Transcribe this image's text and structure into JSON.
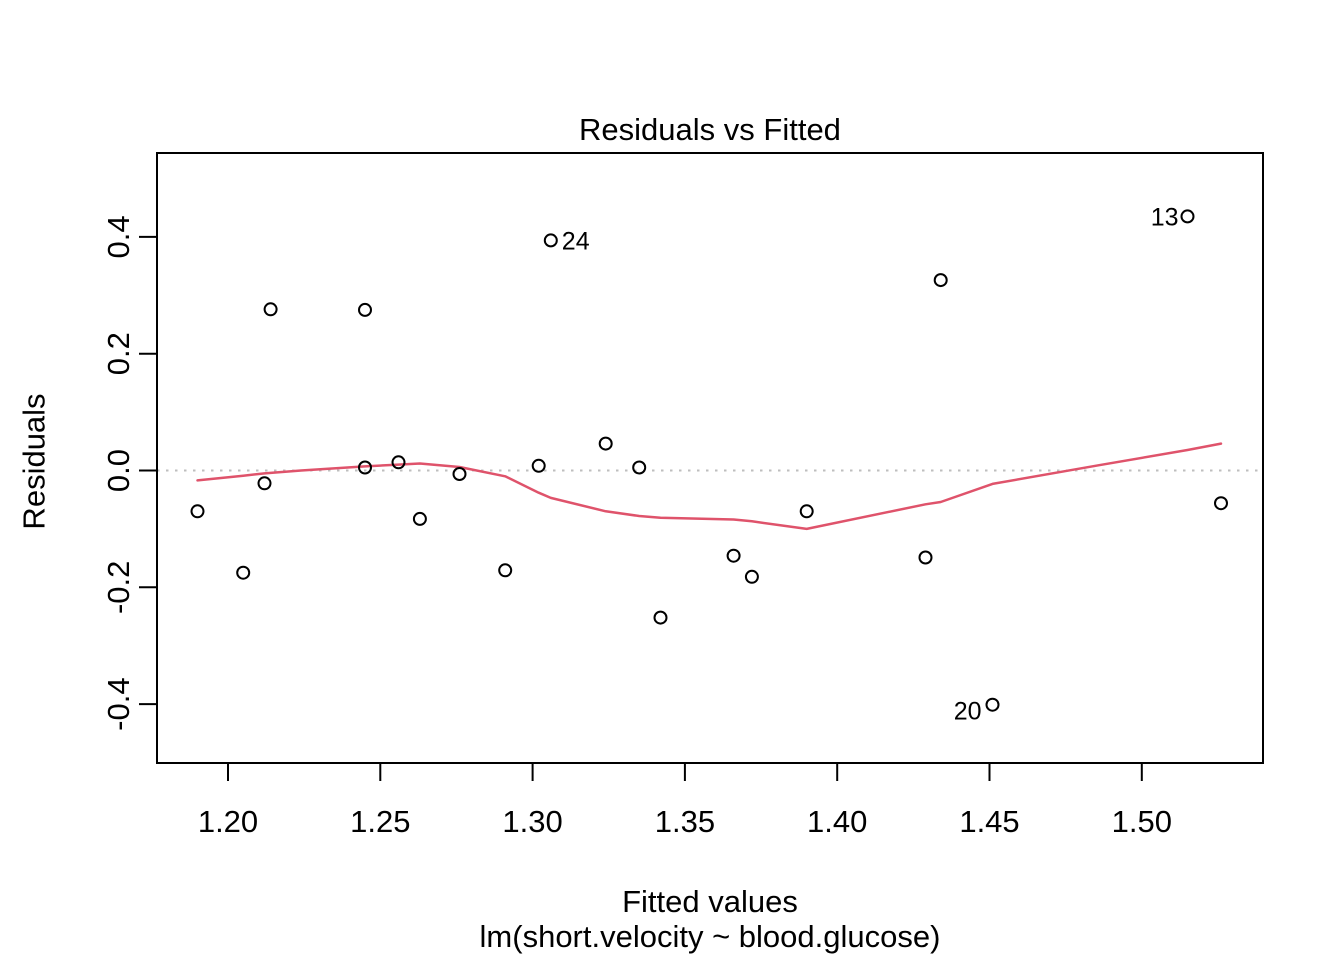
{
  "figure": {
    "background": "#ffffff"
  },
  "chart_data": {
    "type": "scatter",
    "title": "Residuals vs Fitted",
    "xlabel": "Fitted values",
    "xlabel2": "lm(short.velocity ~ blood.glucose)",
    "ylabel": "Residuals",
    "xlim": [
      1.1767,
      1.5398
    ],
    "ylim": [
      -0.5009,
      0.5436
    ],
    "x_ticks": [
      1.2,
      1.25,
      1.3,
      1.35,
      1.4,
      1.45,
      1.5
    ],
    "x_tick_labels": [
      "1.20",
      "1.25",
      "1.30",
      "1.35",
      "1.40",
      "1.45",
      "1.50"
    ],
    "y_ticks": [
      -0.4,
      -0.2,
      0.0,
      0.2,
      0.4
    ],
    "y_tick_labels": [
      "-0.4",
      "-0.2",
      "0.0",
      "0.2",
      "0.4"
    ],
    "grid": false,
    "zero_line_y": 0,
    "points": [
      [
        1.434,
        0.326
      ],
      [
        1.335,
        0.005
      ],
      [
        1.276,
        -0.006
      ],
      [
        1.526,
        -0.056
      ],
      [
        1.256,
        0.014
      ],
      [
        1.214,
        0.276
      ],
      [
        1.302,
        0.008
      ],
      [
        1.342,
        -0.252
      ],
      [
        1.263,
        -0.083
      ],
      [
        1.366,
        -0.146
      ],
      [
        1.245,
        0.005
      ],
      [
        1.212,
        -0.022
      ],
      [
        1.515,
        0.435
      ],
      [
        1.429,
        -0.149
      ],
      [
        1.245,
        0.275
      ],
      [
        1.19,
        -0.07
      ],
      [
        1.324,
        0.046
      ],
      [
        1.372,
        -0.182
      ],
      [
        1.451,
        -0.401
      ],
      [
        1.39,
        -0.07
      ],
      [
        1.205,
        -0.175
      ],
      [
        1.291,
        -0.171
      ],
      [
        1.306,
        0.394
      ]
    ],
    "labeled_points": [
      {
        "label": "24",
        "x": 1.306,
        "y": 0.394,
        "side": "right"
      },
      {
        "label": "13",
        "x": 1.515,
        "y": 0.435,
        "side": "left"
      },
      {
        "label": "20",
        "x": 1.451,
        "y": -0.401,
        "side": "left-low"
      }
    ],
    "smooth_line": [
      [
        1.19,
        -0.017
      ],
      [
        1.205,
        -0.009
      ],
      [
        1.212,
        -0.005
      ],
      [
        1.224,
        0.0
      ],
      [
        1.245,
        0.007
      ],
      [
        1.256,
        0.01
      ],
      [
        1.263,
        0.012
      ],
      [
        1.276,
        0.006
      ],
      [
        1.291,
        -0.01
      ],
      [
        1.302,
        -0.038
      ],
      [
        1.306,
        -0.047
      ],
      [
        1.324,
        -0.07
      ],
      [
        1.335,
        -0.078
      ],
      [
        1.342,
        -0.081
      ],
      [
        1.366,
        -0.084
      ],
      [
        1.372,
        -0.087
      ],
      [
        1.39,
        -0.1
      ],
      [
        1.429,
        -0.058
      ],
      [
        1.434,
        -0.054
      ],
      [
        1.451,
        -0.023
      ],
      [
        1.486,
        0.009
      ],
      [
        1.515,
        0.035
      ],
      [
        1.526,
        0.046
      ]
    ],
    "colors": {
      "smooth_line": "#DF536B",
      "zero_line": "#BEBEBE",
      "points": "#000000",
      "box": "#000000"
    }
  }
}
